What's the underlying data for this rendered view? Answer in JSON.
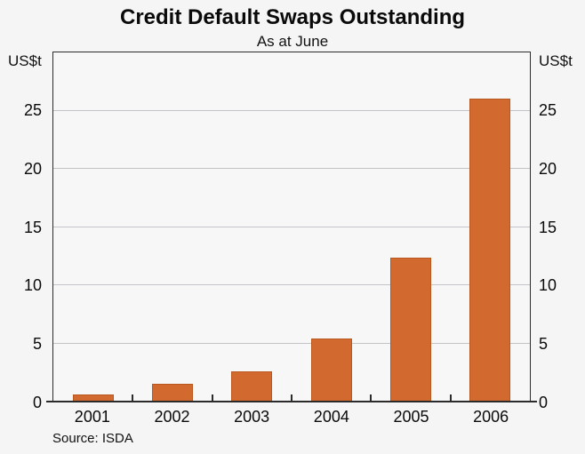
{
  "chart_data": {
    "type": "bar",
    "title": "Credit Default Swaps Outstanding",
    "subtitle": "As at June",
    "unit_left": "US$t",
    "unit_right": "US$t",
    "categories": [
      "2001",
      "2002",
      "2003",
      "2004",
      "2005",
      "2006"
    ],
    "values": [
      0.6,
      1.5,
      2.6,
      5.4,
      12.4,
      26.0
    ],
    "ylim": [
      0,
      30
    ],
    "yticks": [
      0,
      5,
      10,
      15,
      20,
      25
    ],
    "grid": "horizontal",
    "legend": "none",
    "source": "Source: ISDA",
    "colors": {
      "bar_fill": "#d2692e",
      "bar_border": "#b8571e",
      "gridline": "#c4c4c8",
      "axis": "#2b2b2b",
      "background": "#f5f5f6",
      "plot_background": "#f7f7f8",
      "text": "#0a0a0a"
    }
  }
}
